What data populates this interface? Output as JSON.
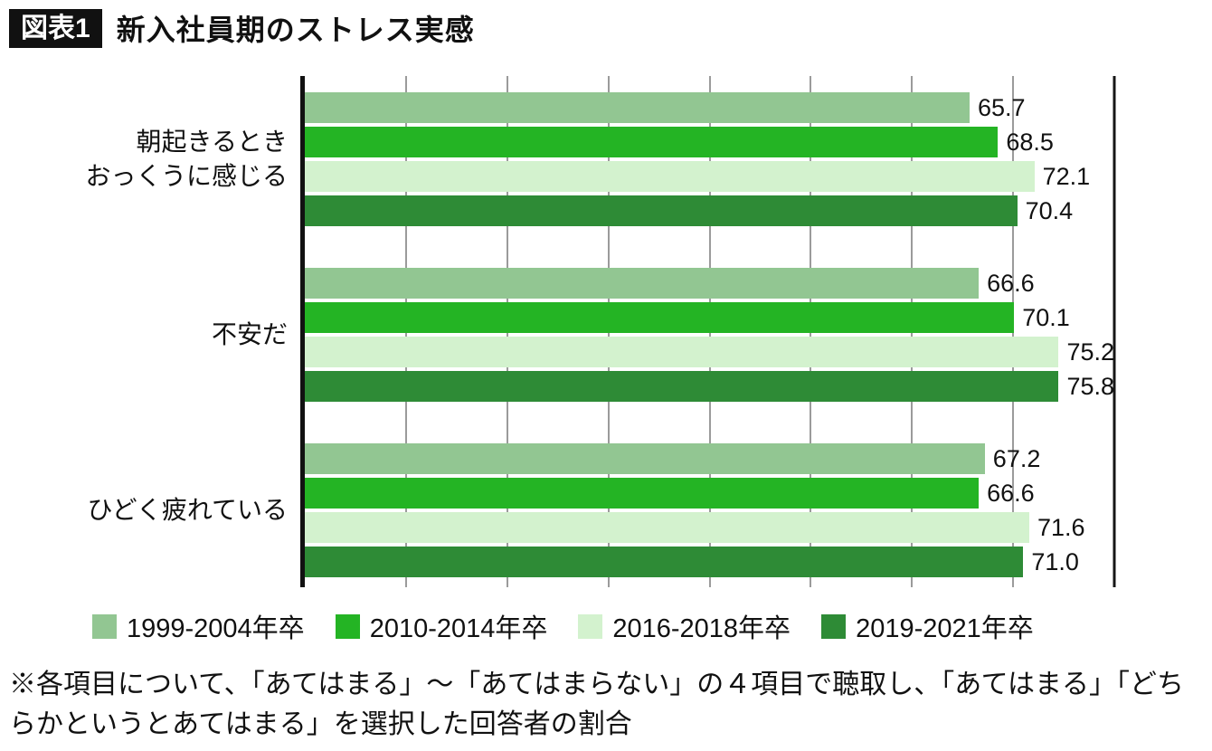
{
  "header": {
    "badge": "図表1",
    "title": "新入社員期のストレス実感"
  },
  "chart_data": {
    "type": "bar",
    "orientation": "horizontal",
    "title": "新入社員期のストレス実感",
    "categories": [
      "朝起きるとき\nおっくうに感じる",
      "不安だ",
      "ひどく疲れている"
    ],
    "series": [
      {
        "name": "1999-2004年卒",
        "color": "#92c692",
        "values": [
          65.7,
          66.6,
          67.2
        ]
      },
      {
        "name": "2010-2014年卒",
        "color": "#24b424",
        "values": [
          68.5,
          70.1,
          66.6
        ]
      },
      {
        "name": "2016-2018年卒",
        "color": "#d3f2ce",
        "values": [
          72.1,
          75.2,
          71.6
        ]
      },
      {
        "name": "2019-2021年卒",
        "color": "#2e8b36",
        "values": [
          70.4,
          75.8,
          71.0
        ]
      }
    ],
    "xlim": [
      0,
      80
    ],
    "grid_step": 10,
    "grid": true,
    "legend_position": "bottom",
    "value_labels": true,
    "colors": {
      "axis": "#111111",
      "gridline": "#9b9b9b",
      "right_border": "#161616"
    }
  },
  "footnote": "※各項目について、「あてはまる」～「あてはまらない」の４項目で聴取し、「あてはまる」「どちらかというとあてはまる」を選択した回答者の割合"
}
